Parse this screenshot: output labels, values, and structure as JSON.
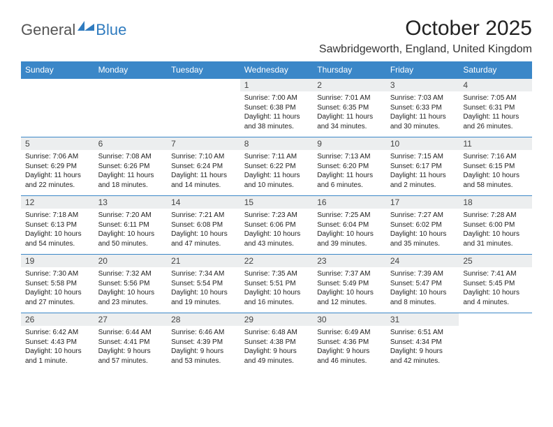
{
  "logo": {
    "text1": "General",
    "text2": "Blue"
  },
  "title": "October 2025",
  "location": "Sawbridgeworth, England, United Kingdom",
  "columns": [
    "Sunday",
    "Monday",
    "Tuesday",
    "Wednesday",
    "Thursday",
    "Friday",
    "Saturday"
  ],
  "header_bg": "#3b87c8",
  "header_text_color": "#ffffff",
  "daynum_bg": "#eceeef",
  "border_color": "#3b87c8",
  "page_bg": "#ffffff",
  "text_color": "#212121",
  "font_family": "Arial",
  "title_fontsize": 30,
  "location_fontsize": 16,
  "header_fontsize": 12,
  "daynum_fontsize": 12,
  "details_fontsize": 10,
  "weeks": [
    [
      {
        "day": "",
        "lines": []
      },
      {
        "day": "",
        "lines": []
      },
      {
        "day": "",
        "lines": []
      },
      {
        "day": "1",
        "lines": [
          "Sunrise: 7:00 AM",
          "Sunset: 6:38 PM",
          "Daylight: 11 hours and 38 minutes."
        ]
      },
      {
        "day": "2",
        "lines": [
          "Sunrise: 7:01 AM",
          "Sunset: 6:35 PM",
          "Daylight: 11 hours and 34 minutes."
        ]
      },
      {
        "day": "3",
        "lines": [
          "Sunrise: 7:03 AM",
          "Sunset: 6:33 PM",
          "Daylight: 11 hours and 30 minutes."
        ]
      },
      {
        "day": "4",
        "lines": [
          "Sunrise: 7:05 AM",
          "Sunset: 6:31 PM",
          "Daylight: 11 hours and 26 minutes."
        ]
      }
    ],
    [
      {
        "day": "5",
        "lines": [
          "Sunrise: 7:06 AM",
          "Sunset: 6:29 PM",
          "Daylight: 11 hours and 22 minutes."
        ]
      },
      {
        "day": "6",
        "lines": [
          "Sunrise: 7:08 AM",
          "Sunset: 6:26 PM",
          "Daylight: 11 hours and 18 minutes."
        ]
      },
      {
        "day": "7",
        "lines": [
          "Sunrise: 7:10 AM",
          "Sunset: 6:24 PM",
          "Daylight: 11 hours and 14 minutes."
        ]
      },
      {
        "day": "8",
        "lines": [
          "Sunrise: 7:11 AM",
          "Sunset: 6:22 PM",
          "Daylight: 11 hours and 10 minutes."
        ]
      },
      {
        "day": "9",
        "lines": [
          "Sunrise: 7:13 AM",
          "Sunset: 6:20 PM",
          "Daylight: 11 hours and 6 minutes."
        ]
      },
      {
        "day": "10",
        "lines": [
          "Sunrise: 7:15 AM",
          "Sunset: 6:17 PM",
          "Daylight: 11 hours and 2 minutes."
        ]
      },
      {
        "day": "11",
        "lines": [
          "Sunrise: 7:16 AM",
          "Sunset: 6:15 PM",
          "Daylight: 10 hours and 58 minutes."
        ]
      }
    ],
    [
      {
        "day": "12",
        "lines": [
          "Sunrise: 7:18 AM",
          "Sunset: 6:13 PM",
          "Daylight: 10 hours and 54 minutes."
        ]
      },
      {
        "day": "13",
        "lines": [
          "Sunrise: 7:20 AM",
          "Sunset: 6:11 PM",
          "Daylight: 10 hours and 50 minutes."
        ]
      },
      {
        "day": "14",
        "lines": [
          "Sunrise: 7:21 AM",
          "Sunset: 6:08 PM",
          "Daylight: 10 hours and 47 minutes."
        ]
      },
      {
        "day": "15",
        "lines": [
          "Sunrise: 7:23 AM",
          "Sunset: 6:06 PM",
          "Daylight: 10 hours and 43 minutes."
        ]
      },
      {
        "day": "16",
        "lines": [
          "Sunrise: 7:25 AM",
          "Sunset: 6:04 PM",
          "Daylight: 10 hours and 39 minutes."
        ]
      },
      {
        "day": "17",
        "lines": [
          "Sunrise: 7:27 AM",
          "Sunset: 6:02 PM",
          "Daylight: 10 hours and 35 minutes."
        ]
      },
      {
        "day": "18",
        "lines": [
          "Sunrise: 7:28 AM",
          "Sunset: 6:00 PM",
          "Daylight: 10 hours and 31 minutes."
        ]
      }
    ],
    [
      {
        "day": "19",
        "lines": [
          "Sunrise: 7:30 AM",
          "Sunset: 5:58 PM",
          "Daylight: 10 hours and 27 minutes."
        ]
      },
      {
        "day": "20",
        "lines": [
          "Sunrise: 7:32 AM",
          "Sunset: 5:56 PM",
          "Daylight: 10 hours and 23 minutes."
        ]
      },
      {
        "day": "21",
        "lines": [
          "Sunrise: 7:34 AM",
          "Sunset: 5:54 PM",
          "Daylight: 10 hours and 19 minutes."
        ]
      },
      {
        "day": "22",
        "lines": [
          "Sunrise: 7:35 AM",
          "Sunset: 5:51 PM",
          "Daylight: 10 hours and 16 minutes."
        ]
      },
      {
        "day": "23",
        "lines": [
          "Sunrise: 7:37 AM",
          "Sunset: 5:49 PM",
          "Daylight: 10 hours and 12 minutes."
        ]
      },
      {
        "day": "24",
        "lines": [
          "Sunrise: 7:39 AM",
          "Sunset: 5:47 PM",
          "Daylight: 10 hours and 8 minutes."
        ]
      },
      {
        "day": "25",
        "lines": [
          "Sunrise: 7:41 AM",
          "Sunset: 5:45 PM",
          "Daylight: 10 hours and 4 minutes."
        ]
      }
    ],
    [
      {
        "day": "26",
        "lines": [
          "Sunrise: 6:42 AM",
          "Sunset: 4:43 PM",
          "Daylight: 10 hours and 1 minute."
        ]
      },
      {
        "day": "27",
        "lines": [
          "Sunrise: 6:44 AM",
          "Sunset: 4:41 PM",
          "Daylight: 9 hours and 57 minutes."
        ]
      },
      {
        "day": "28",
        "lines": [
          "Sunrise: 6:46 AM",
          "Sunset: 4:39 PM",
          "Daylight: 9 hours and 53 minutes."
        ]
      },
      {
        "day": "29",
        "lines": [
          "Sunrise: 6:48 AM",
          "Sunset: 4:38 PM",
          "Daylight: 9 hours and 49 minutes."
        ]
      },
      {
        "day": "30",
        "lines": [
          "Sunrise: 6:49 AM",
          "Sunset: 4:36 PM",
          "Daylight: 9 hours and 46 minutes."
        ]
      },
      {
        "day": "31",
        "lines": [
          "Sunrise: 6:51 AM",
          "Sunset: 4:34 PM",
          "Daylight: 9 hours and 42 minutes."
        ]
      },
      {
        "day": "",
        "lines": []
      }
    ]
  ]
}
